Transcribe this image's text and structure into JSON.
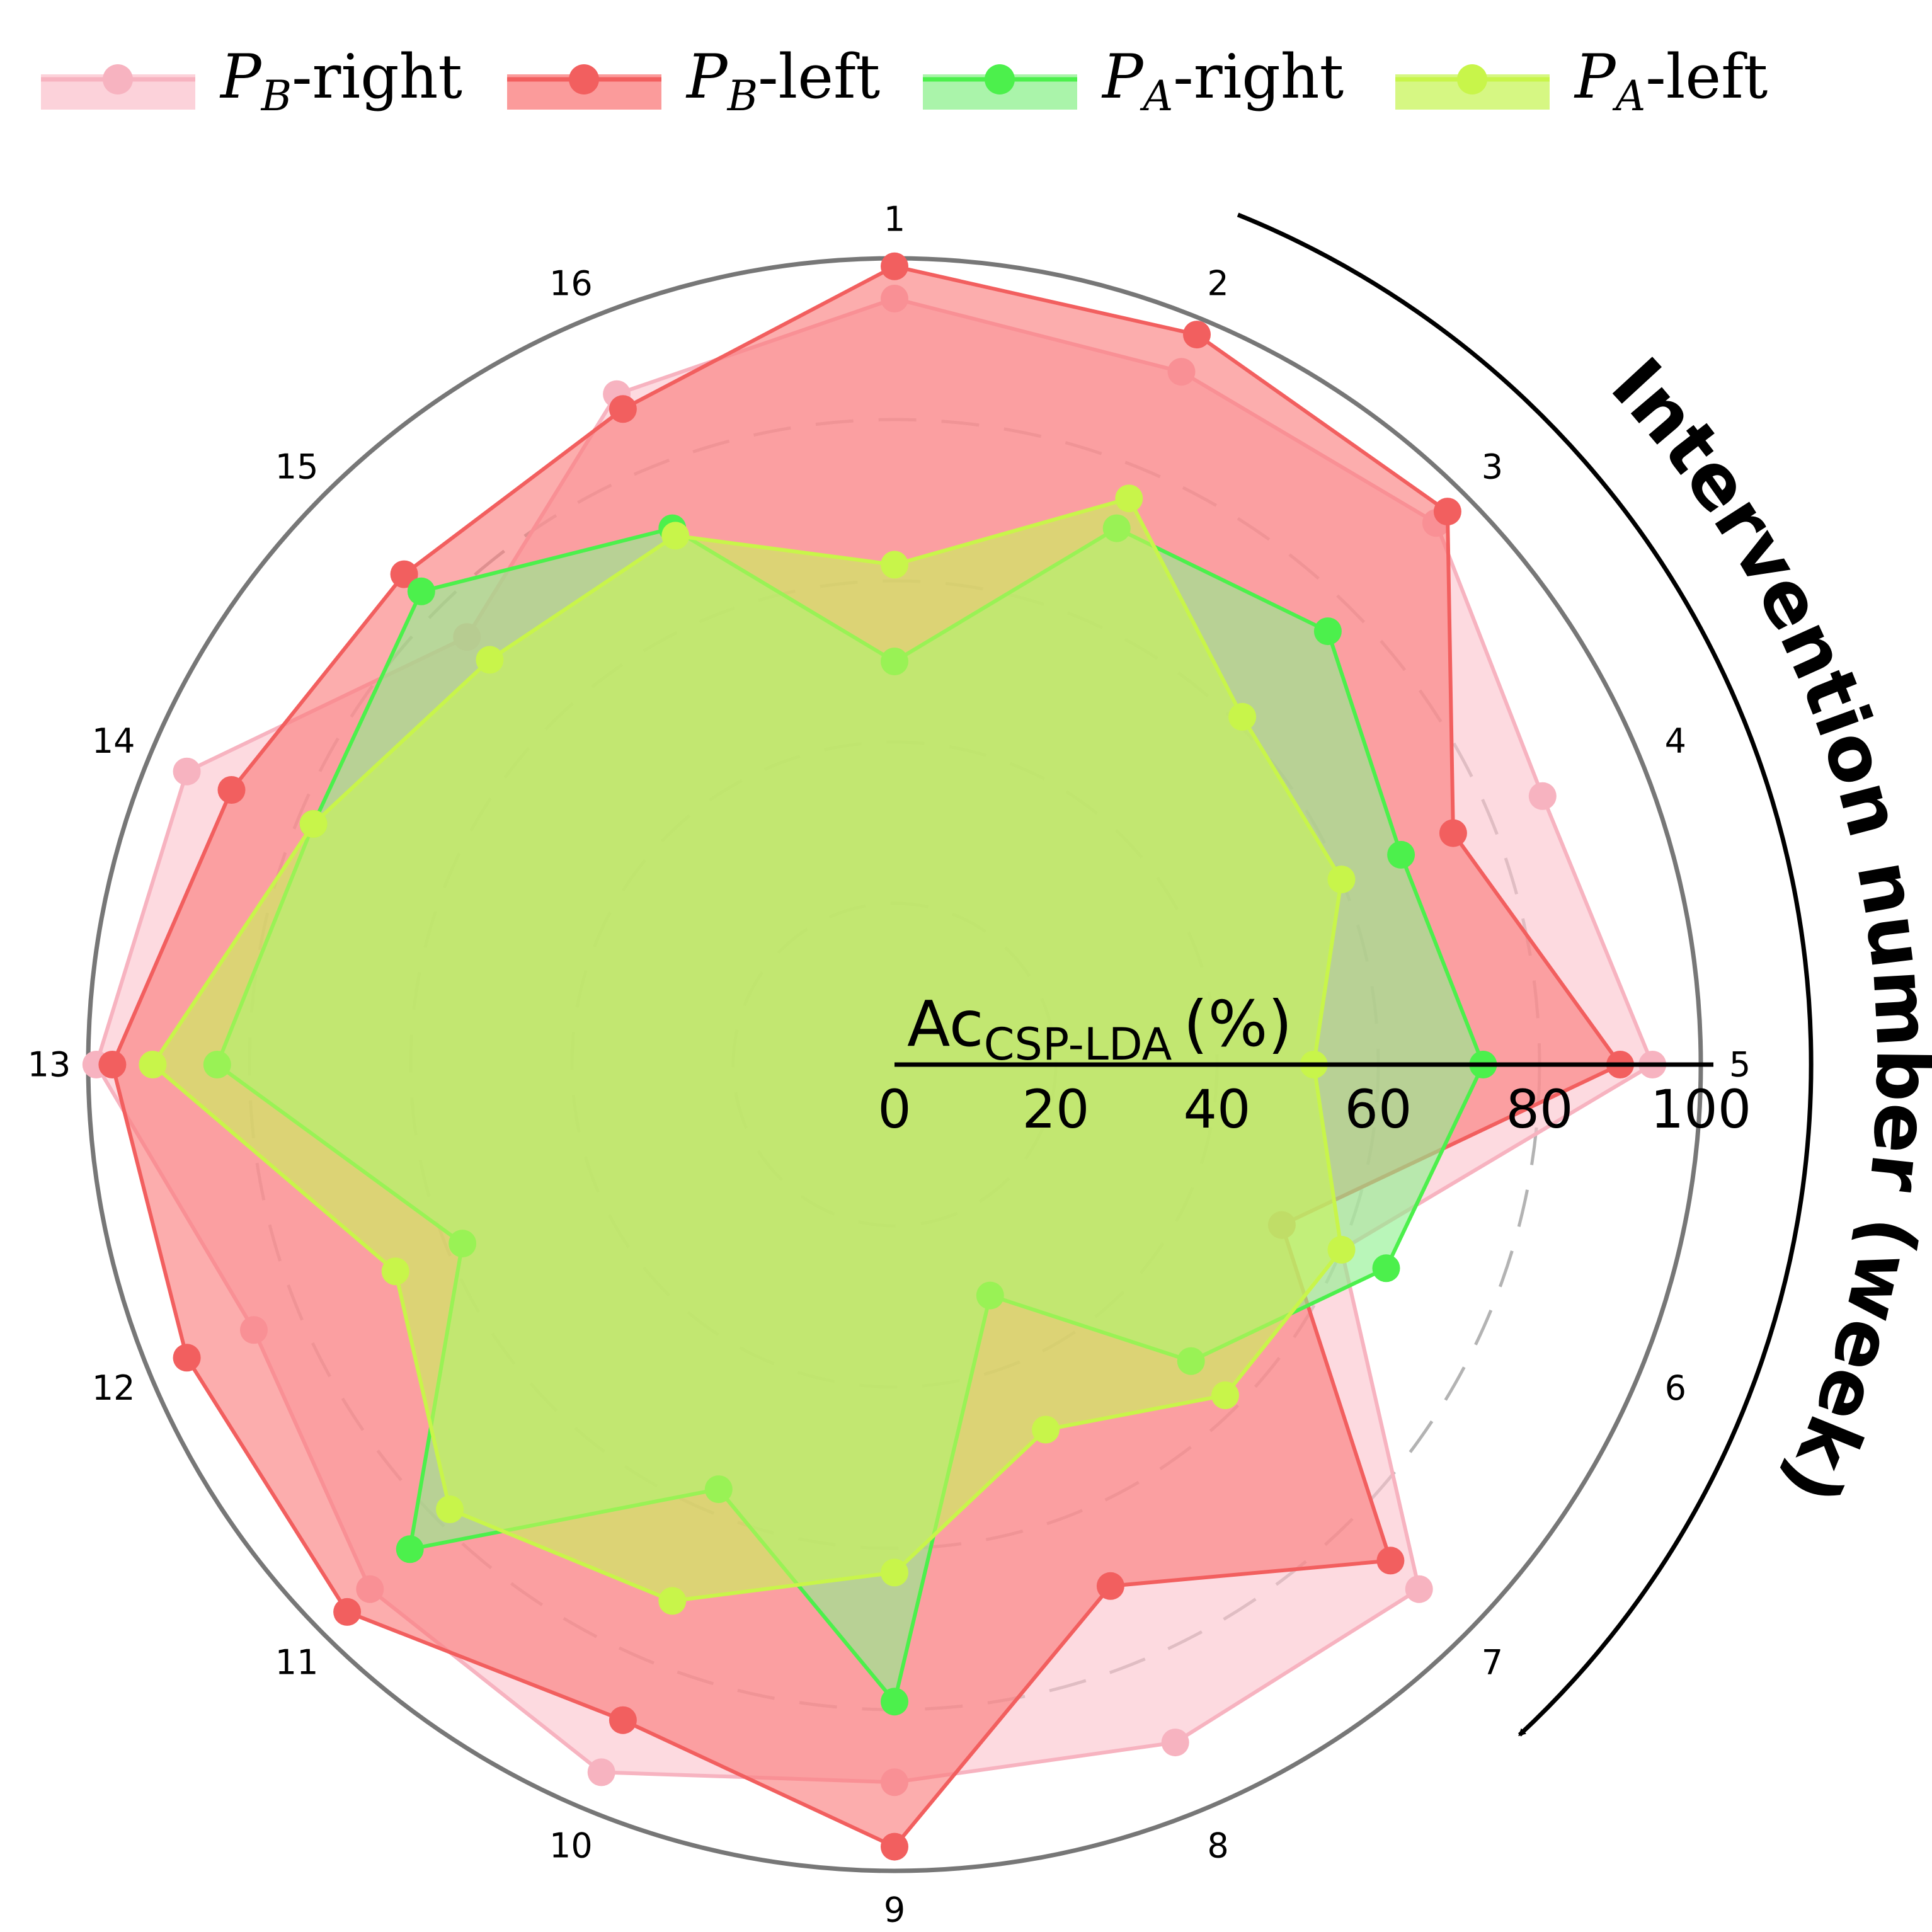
{
  "chart_data": {
    "type": "radar",
    "axis_title": "Intervention number (week)",
    "radial_label_main": "Ac",
    "radial_label_sub": "CSP-LDA",
    "radial_label_unit": "(%)",
    "categories": [
      "1",
      "2",
      "3",
      "4",
      "5",
      "6",
      "7",
      "8",
      "9",
      "10",
      "11",
      "12",
      "13",
      "14",
      "15",
      "16"
    ],
    "radial_ticks": [
      "0",
      "20",
      "40",
      "60",
      "80",
      "100"
    ],
    "rlim": [
      0,
      100
    ],
    "gridlines": [
      20,
      40,
      60,
      80
    ],
    "legend_position": "top",
    "series": [
      {
        "name_var": "P",
        "name_sub": "B",
        "name_suffix": "-right",
        "color": "#f7b3c0",
        "fill": "#fbc3cd",
        "values": [
          95,
          93,
          95,
          87,
          94,
          60,
          92,
          91,
          89,
          95,
          92,
          86,
          99,
          95,
          75,
          90
        ]
      },
      {
        "name_var": "P",
        "name_sub": "B",
        "name_suffix": "-left",
        "color": "#f25f5f",
        "fill": "#fa7a7a",
        "values": [
          99,
          98,
          97,
          75,
          90,
          52,
          87,
          70,
          97,
          88,
          96,
          95,
          97,
          89,
          86,
          88
        ]
      },
      {
        "name_var": "P",
        "name_sub": "A",
        "name_suffix": "-right",
        "color": "#4cf04c",
        "fill": "#8ef08e",
        "values": [
          50,
          72,
          76,
          68,
          73,
          66,
          52,
          31,
          79,
          57,
          85,
          58,
          84,
          78,
          83,
          72
        ]
      },
      {
        "name_var": "P",
        "name_sub": "A",
        "name_suffix": "-left",
        "color": "#c8f54a",
        "fill": "#c8f45a",
        "values": [
          62,
          76,
          61,
          60,
          52,
          60,
          58,
          49,
          63,
          72,
          78,
          67,
          92,
          78,
          71,
          71
        ]
      }
    ]
  }
}
